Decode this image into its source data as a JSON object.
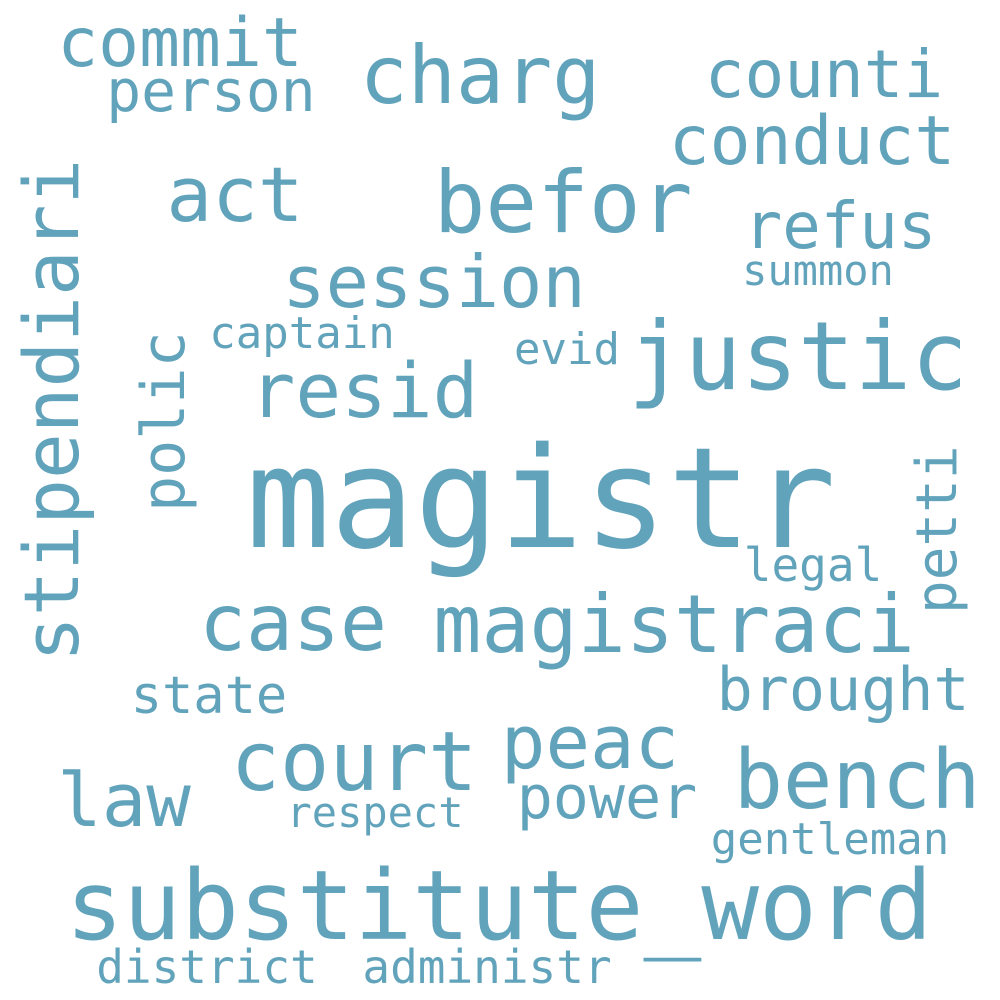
{
  "colors": {
    "background": "#ffffff",
    "word": "#62a3bc"
  },
  "words": [
    {
      "text": "magistr",
      "vertical": false
    },
    {
      "text": "substitute_word",
      "vertical": false
    },
    {
      "text": "magistraci",
      "vertical": false
    },
    {
      "text": "case",
      "vertical": false
    },
    {
      "text": "befor",
      "vertical": false
    },
    {
      "text": "justic",
      "vertical": false
    },
    {
      "text": "act",
      "vertical": false
    },
    {
      "text": "bench",
      "vertical": false
    },
    {
      "text": "session",
      "vertical": false
    },
    {
      "text": "resid",
      "vertical": false
    },
    {
      "text": "court",
      "vertical": false
    },
    {
      "text": "charg",
      "vertical": false
    },
    {
      "text": "counti",
      "vertical": false
    },
    {
      "text": "conduct",
      "vertical": false
    },
    {
      "text": "stipendiari",
      "vertical": true
    },
    {
      "text": "polic",
      "vertical": true
    },
    {
      "text": "refus",
      "vertical": false
    },
    {
      "text": "law",
      "vertical": false
    },
    {
      "text": "peac",
      "vertical": false
    },
    {
      "text": "commit",
      "vertical": false
    },
    {
      "text": "brought",
      "vertical": false
    },
    {
      "text": "power",
      "vertical": false
    },
    {
      "text": "state",
      "vertical": false
    },
    {
      "text": "petti",
      "vertical": true
    },
    {
      "text": "person",
      "vertical": false
    },
    {
      "text": "captain",
      "vertical": false
    },
    {
      "text": "legal",
      "vertical": false
    },
    {
      "text": "summon",
      "vertical": false
    },
    {
      "text": "evid",
      "vertical": false
    },
    {
      "text": "respect",
      "vertical": false
    },
    {
      "text": "gentleman",
      "vertical": false
    },
    {
      "text": "district",
      "vertical": false
    },
    {
      "text": "administr",
      "vertical": false
    }
  ]
}
